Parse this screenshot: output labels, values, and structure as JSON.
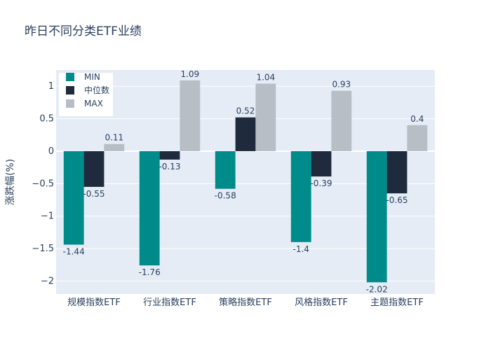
{
  "chart_data": {
    "type": "bar",
    "title": "昨日不同分类ETF业绩",
    "xlabel": "",
    "ylabel": "涨跌幅(%)",
    "categories": [
      "规模指数ETF",
      "行业指数ETF",
      "策略指数ETF",
      "风格指数ETF",
      "主题指数ETF"
    ],
    "series": [
      {
        "name": "MIN",
        "color": "#008b8b",
        "values": [
          -1.44,
          -1.76,
          -0.58,
          -1.4,
          -2.02
        ]
      },
      {
        "name": "中位数",
        "color": "#1f2a3c",
        "values": [
          -0.55,
          -0.13,
          0.52,
          -0.39,
          -0.65
        ]
      },
      {
        "name": "MAX",
        "color": "#b8bec6",
        "values": [
          0.11,
          1.09,
          1.04,
          0.93,
          0.4
        ]
      }
    ],
    "ylim": [
      -2.2,
      1.25
    ],
    "yticks": [
      -2,
      -1.5,
      -1,
      -0.5,
      0,
      0.5,
      1
    ],
    "ytick_labels": [
      "−2",
      "−1.5",
      "−1",
      "−0.5",
      "0",
      "0.5",
      "1"
    ],
    "grid": true,
    "legend_position": "top-left",
    "plot_background": "#e5ecf6"
  }
}
